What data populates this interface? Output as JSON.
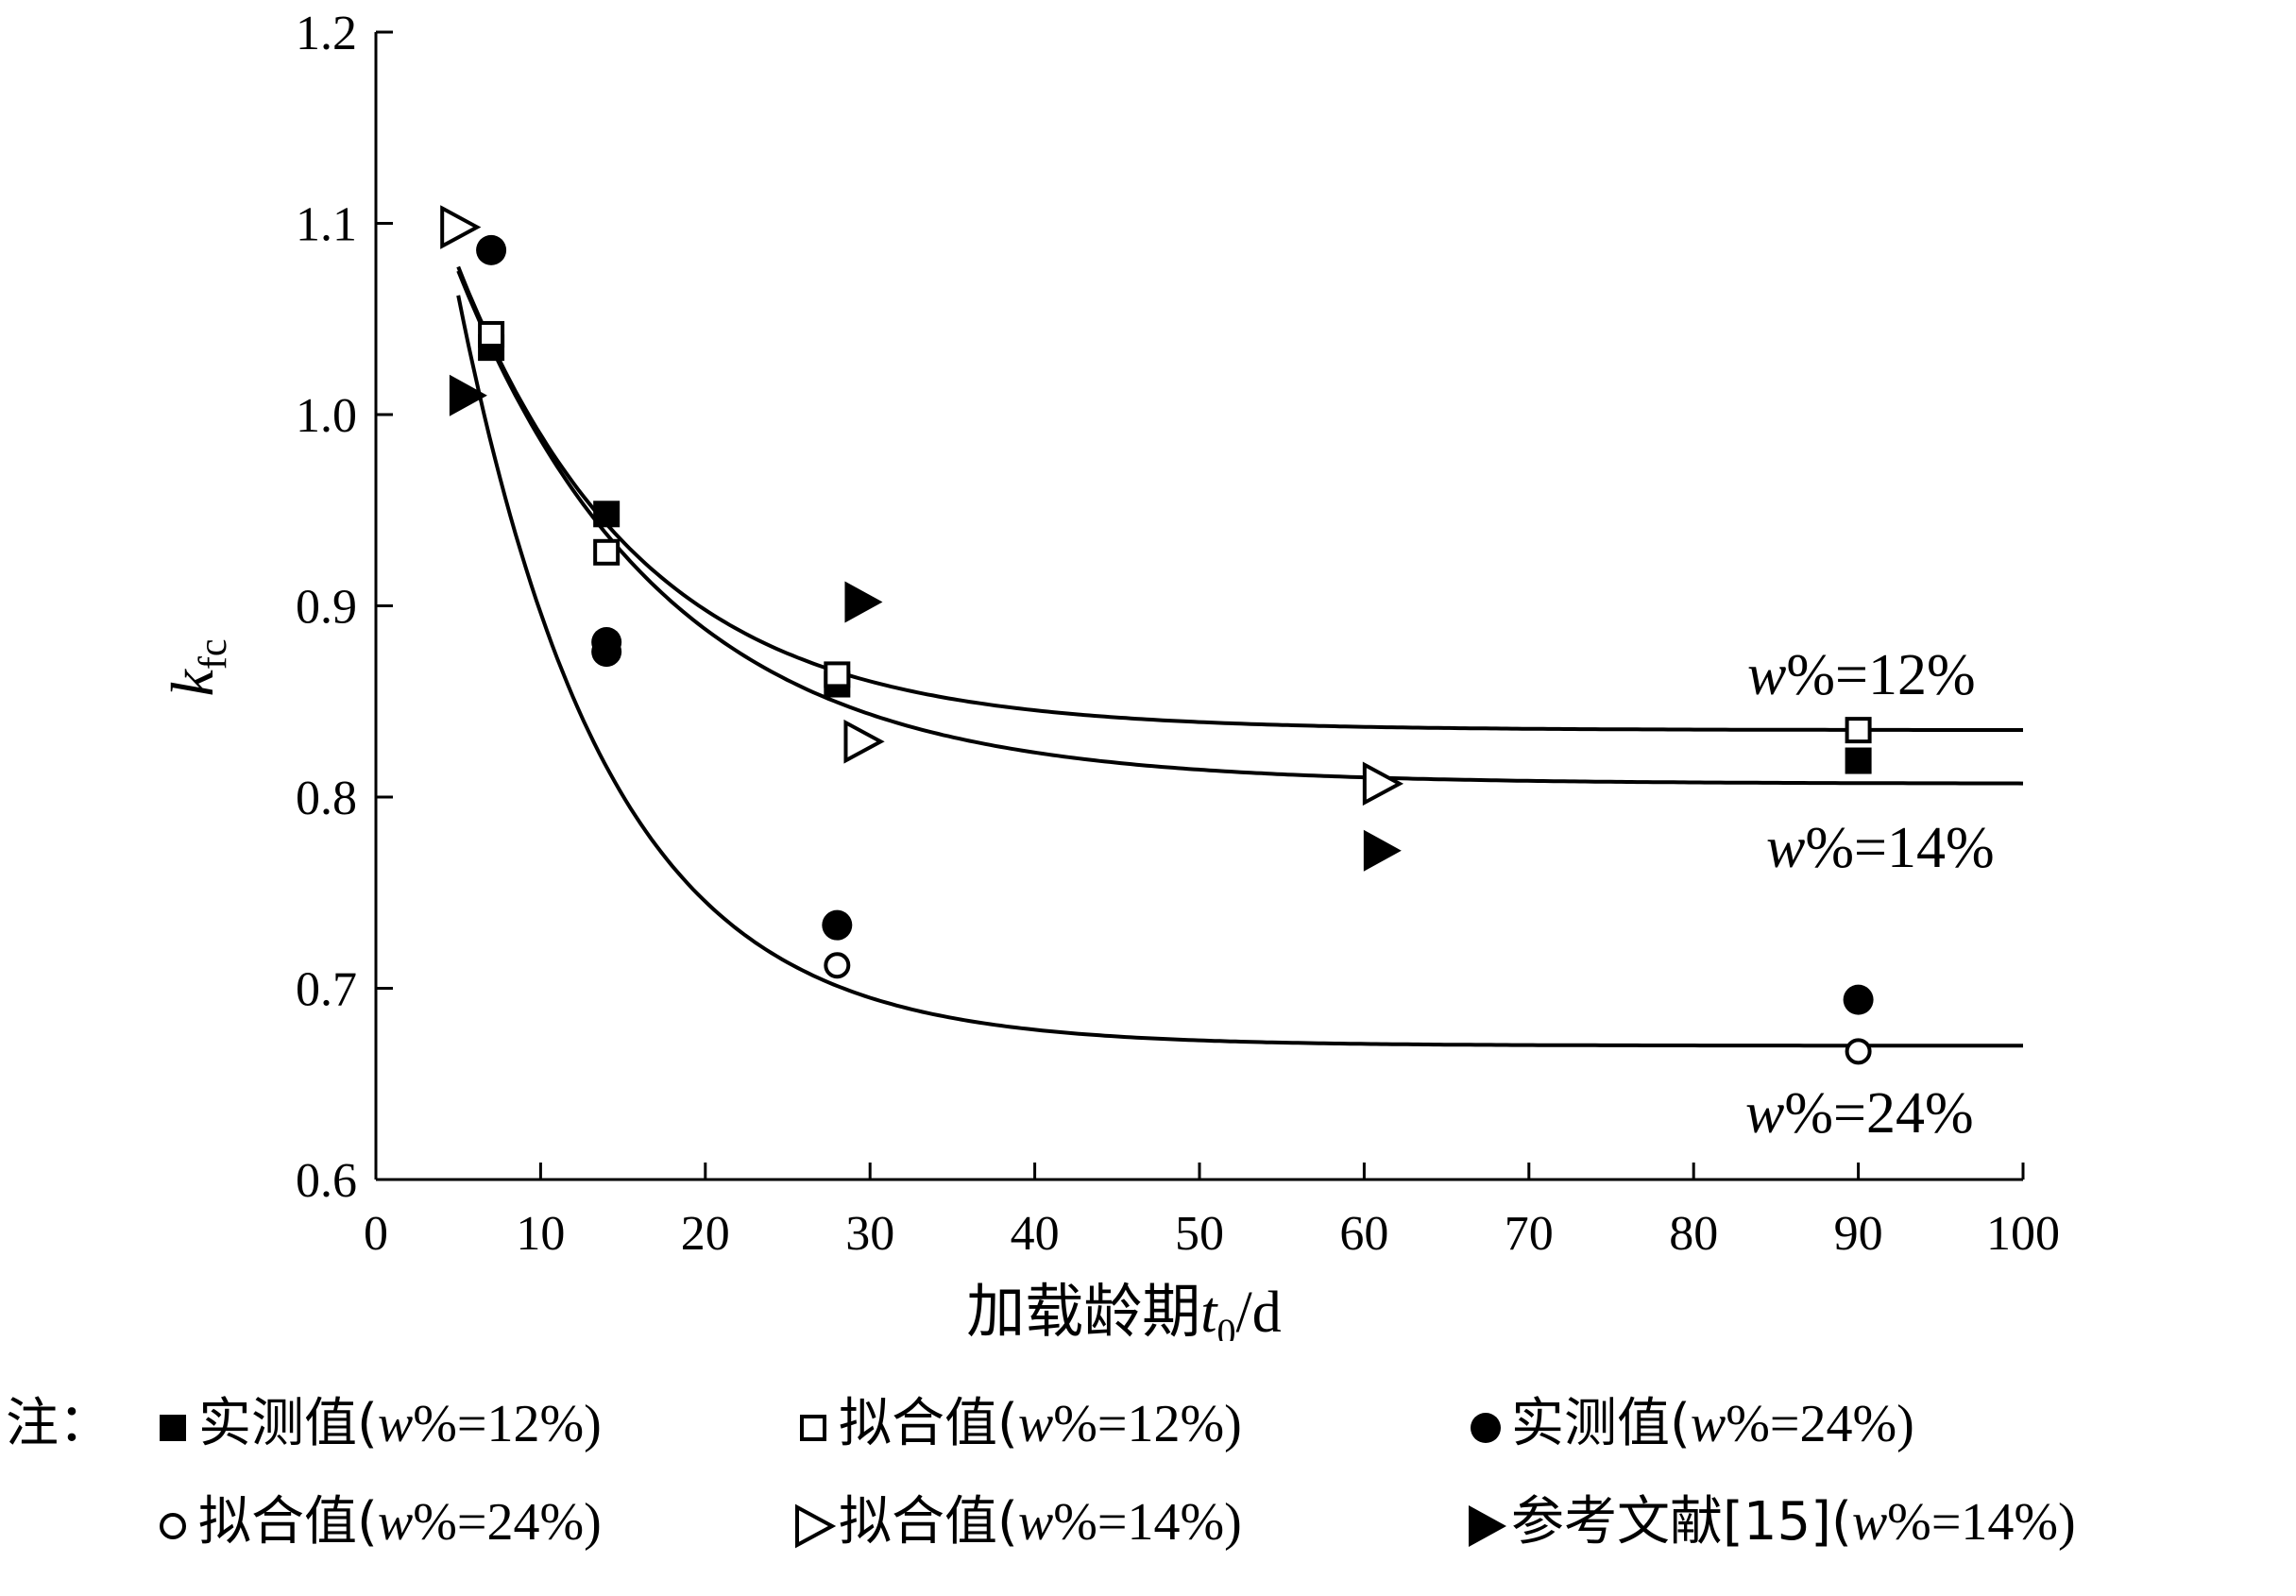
{
  "chart_data": {
    "type": "line",
    "xlabel_main": "加载龄期",
    "xlabel_sym": "t",
    "xlabel_sub": "0",
    "xlabel_unit": "/d",
    "ylabel_sym": "k",
    "ylabel_sub": "fc",
    "xlim": [
      0,
      100
    ],
    "ylim": [
      0.6,
      1.2
    ],
    "xticks": [
      "0",
      "10",
      "20",
      "30",
      "40",
      "50",
      "60",
      "70",
      "80",
      "90",
      "100"
    ],
    "yticks": [
      "0.6",
      "0.7",
      "0.8",
      "0.9",
      "1.0",
      "1.1",
      "1.2"
    ],
    "grid": false,
    "curve_labels": [
      {
        "prefix": "w",
        "text": "%=12%"
      },
      {
        "prefix": "w",
        "text": "%=14%"
      },
      {
        "prefix": "w",
        "text": "%=24%"
      }
    ],
    "curves": [
      {
        "label_index": 0,
        "x_start": 5,
        "x_end": 100,
        "asymptote": 0.835,
        "amplitude": 0.38,
        "decay": 0.09
      },
      {
        "label_index": 1,
        "x_start": 5,
        "x_end": 100,
        "asymptote": 0.807,
        "amplitude": 0.4,
        "decay": 0.08
      },
      {
        "label_index": 2,
        "x_start": 5,
        "x_end": 100,
        "asymptote": 0.67,
        "amplitude": 0.68,
        "decay": 0.11
      }
    ],
    "series": [
      {
        "marker": "filled-square",
        "points": [
          [
            7,
            1.035
          ],
          [
            14,
            0.948
          ],
          [
            28,
            0.859
          ],
          [
            90,
            0.819
          ]
        ]
      },
      {
        "marker": "open-square",
        "points": [
          [
            7,
            1.042
          ],
          [
            14,
            0.928
          ],
          [
            28,
            0.864
          ],
          [
            90,
            0.835
          ]
        ]
      },
      {
        "marker": "filled-circle",
        "points": [
          [
            7,
            1.086
          ],
          [
            14,
            0.876
          ],
          [
            14,
            0.881
          ],
          [
            28,
            0.733
          ],
          [
            90,
            0.694
          ]
        ]
      },
      {
        "marker": "open-circle",
        "points": [
          [
            28,
            0.712
          ],
          [
            90,
            0.667
          ]
        ]
      },
      {
        "marker": "open-triangle",
        "points": [
          [
            5,
            1.098
          ],
          [
            29.5,
            0.829
          ],
          [
            61,
            0.807
          ]
        ]
      },
      {
        "marker": "filled-triangle",
        "points": [
          [
            5.5,
            1.01
          ],
          [
            29.5,
            0.902
          ],
          [
            61,
            0.772
          ]
        ]
      }
    ]
  },
  "legend": {
    "prefix": "注：",
    "row1": [
      {
        "marker": "filled-square",
        "label": "实测值(",
        "label_w": "w",
        "label_tail": "%=12%)"
      },
      {
        "marker": "open-square",
        "label": "拟合值(",
        "label_w": "w",
        "label_tail": "%=12%)"
      },
      {
        "marker": "filled-circle",
        "label": "实测值(",
        "label_w": "w",
        "label_tail": "%=24%)"
      }
    ],
    "row2": [
      {
        "marker": "open-circle",
        "label": "拟合值(",
        "label_w": "w",
        "label_tail": "%=24%)"
      },
      {
        "marker": "open-triangle",
        "label": "拟合值(",
        "label_w": "w",
        "label_tail": "%=14%)"
      },
      {
        "marker": "filled-triangle",
        "label": "参考文献[15](",
        "label_w": "w",
        "label_tail": "%=14%)"
      }
    ]
  }
}
